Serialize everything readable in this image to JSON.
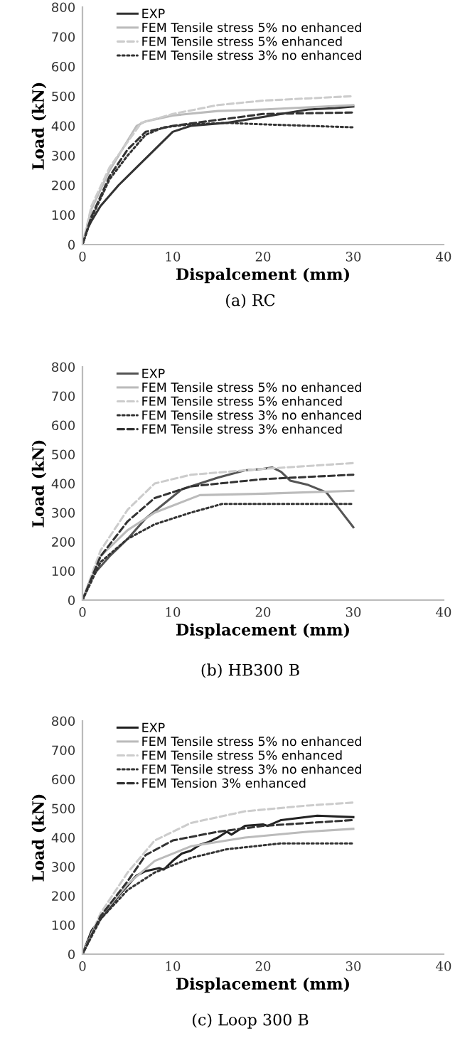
{
  "chart_data": [
    {
      "type": "line",
      "xlabel": "Dispalcement (mm)",
      "ylabel": "Load (kN)",
      "annotations": [
        "(a) RC"
      ],
      "xlim": [
        0,
        40
      ],
      "ylim": [
        0,
        800
      ],
      "xticks": [
        0,
        10,
        20,
        30,
        40
      ],
      "yticks": [
        0,
        100,
        200,
        300,
        400,
        500,
        600,
        700,
        800
      ],
      "grid": false,
      "legend": "top left",
      "series": [
        {
          "name": "EXP",
          "color": "#333333",
          "line_style": "solid",
          "x": [
            0,
            0.5,
            1,
            2,
            4,
            6,
            8,
            10,
            12,
            16,
            20,
            25,
            28,
            30
          ],
          "values": [
            0,
            50,
            80,
            130,
            200,
            260,
            320,
            380,
            400,
            410,
            430,
            455,
            460,
            465
          ]
        },
        {
          "name": "FEM Tensile stress 5% no enhanced",
          "color": "#bbbbbb",
          "line_style": "solid",
          "x": [
            0,
            1,
            3,
            6,
            7,
            10,
            15,
            20,
            30
          ],
          "values": [
            0,
            120,
            250,
            400,
            415,
            435,
            450,
            455,
            470
          ]
        },
        {
          "name": "FEM Tensile stress 5% enhanced",
          "color": "#cccccc",
          "line_style": "dashed",
          "x": [
            0,
            1,
            3,
            6.5,
            10,
            15,
            20,
            30
          ],
          "values": [
            0,
            130,
            260,
            410,
            440,
            470,
            485,
            500
          ]
        },
        {
          "name": "FEM Tensile stress 3% no enhanced",
          "color": "#333333",
          "line_style": "dotted",
          "x": [
            0,
            1,
            3,
            5,
            7,
            9,
            12,
            16,
            20,
            30
          ],
          "values": [
            0,
            90,
            220,
            300,
            370,
            395,
            405,
            410,
            405,
            395
          ]
        },
        {
          "color": "#333333",
          "line_style": "dashed",
          "x": [
            0,
            1,
            3,
            5,
            7,
            10,
            15,
            20,
            30
          ],
          "values": [
            0,
            95,
            230,
            320,
            380,
            400,
            420,
            440,
            445
          ]
        }
      ]
    },
    {
      "type": "line",
      "xlabel": "Displacement (mm)",
      "ylabel": "Load (kN)",
      "annotations": [
        "(b) HB300 B"
      ],
      "xlim": [
        0,
        40
      ],
      "ylim": [
        0,
        800
      ],
      "xticks": [
        0,
        10,
        20,
        30,
        40
      ],
      "yticks": [
        0,
        100,
        200,
        300,
        400,
        500,
        600,
        700,
        800
      ],
      "grid": false,
      "legend": "top left",
      "series": [
        {
          "name": "EXP",
          "color": "#555555",
          "line_style": "solid",
          "x": [
            0,
            1,
            3,
            5,
            7,
            9,
            11,
            13,
            15,
            18,
            20,
            21,
            22,
            23,
            25,
            27,
            28.5,
            30
          ],
          "values": [
            0,
            80,
            150,
            210,
            280,
            330,
            380,
            400,
            420,
            445,
            450,
            455,
            440,
            410,
            395,
            370,
            310,
            250
          ]
        },
        {
          "name": "FEM Tensile stress 5% no enhanced",
          "color": "#bbbbbb",
          "line_style": "solid",
          "x": [
            0,
            2,
            5,
            8,
            13,
            20,
            30
          ],
          "values": [
            0,
            150,
            240,
            300,
            360,
            365,
            375
          ]
        },
        {
          "name": "FEM Tensile stress 5% enhanced",
          "color": "#cccccc",
          "line_style": "dashed",
          "x": [
            0,
            2,
            5,
            8,
            12,
            20,
            30
          ],
          "values": [
            0,
            170,
            310,
            400,
            430,
            450,
            470
          ]
        },
        {
          "name": "FEM Tensile stress 3% no enhanced",
          "color": "#333333",
          "line_style": "dotted",
          "x": [
            0,
            2,
            5,
            8,
            12,
            15.5,
            30
          ],
          "values": [
            0,
            130,
            210,
            260,
            300,
            330,
            330
          ]
        },
        {
          "name": "FEM Tensile stress 3% enhanced",
          "color": "#333333",
          "line_style": "dashed",
          "x": [
            0,
            2,
            5,
            8,
            12,
            20,
            30
          ],
          "values": [
            0,
            150,
            270,
            350,
            390,
            415,
            430
          ]
        }
      ]
    },
    {
      "type": "line",
      "xlabel": "Displacement (mm)",
      "ylabel": "Load (kN)",
      "annotations": [
        "(c) Loop 300 B"
      ],
      "xlim": [
        0,
        40
      ],
      "ylim": [
        0,
        800
      ],
      "xticks": [
        0,
        10,
        20,
        30,
        40
      ],
      "yticks": [
        0,
        100,
        200,
        300,
        400,
        500,
        600,
        700,
        800
      ],
      "grid": false,
      "legend": "top left",
      "series": [
        {
          "name": "EXP",
          "color": "#222222",
          "line_style": "solid",
          "x": [
            0,
            1,
            2,
            4,
            6,
            7,
            8.5,
            9,
            10,
            11,
            12,
            13,
            14,
            15,
            16,
            16.5,
            18,
            20,
            20.5,
            22,
            26,
            30
          ],
          "values": [
            0,
            80,
            120,
            200,
            270,
            285,
            295,
            290,
            320,
            345,
            355,
            375,
            385,
            400,
            420,
            410,
            440,
            445,
            440,
            460,
            475,
            470
          ]
        },
        {
          "name": "FEM Tensile stress 5% no enhanced",
          "color": "#bbbbbb",
          "line_style": "solid",
          "x": [
            0,
            2,
            5,
            8,
            12,
            18,
            25,
            30
          ],
          "values": [
            0,
            130,
            240,
            320,
            370,
            400,
            420,
            430
          ]
        },
        {
          "name": "FEM Tensile stress 5% enhanced",
          "color": "#cccccc",
          "line_style": "dashed",
          "x": [
            0,
            2,
            5,
            8,
            12,
            18,
            25,
            30
          ],
          "values": [
            0,
            140,
            280,
            390,
            450,
            490,
            510,
            520
          ]
        },
        {
          "name": "FEM Tensile stress 3% no enhanced",
          "color": "#333333",
          "line_style": "dotted",
          "x": [
            0,
            2,
            5,
            8,
            12,
            16,
            22,
            30
          ],
          "values": [
            0,
            120,
            220,
            280,
            330,
            360,
            380,
            380
          ]
        },
        {
          "name": "FEM Tension 3% enhanced",
          "color": "#333333",
          "line_style": "dashed",
          "x": [
            0,
            2,
            5,
            7,
            10,
            15,
            20,
            30
          ],
          "values": [
            0,
            130,
            250,
            340,
            390,
            420,
            440,
            460
          ]
        }
      ]
    }
  ]
}
